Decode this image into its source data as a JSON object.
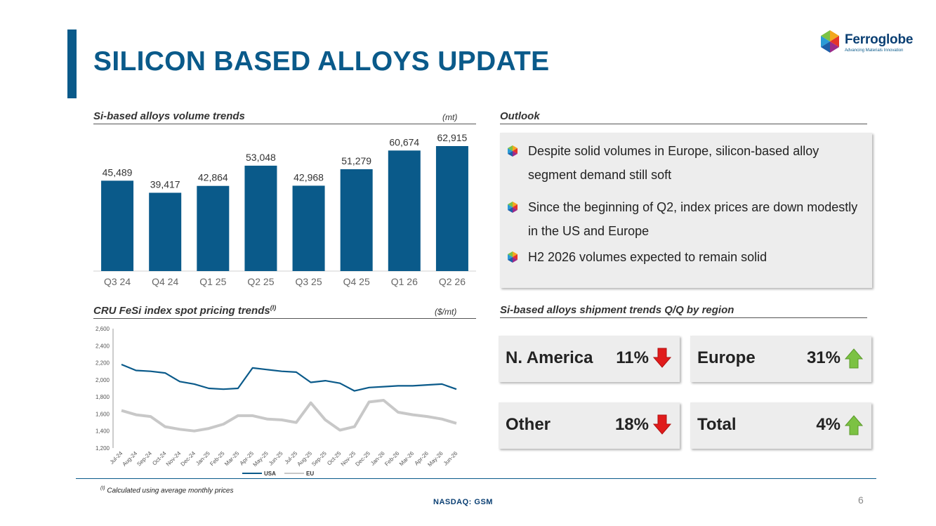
{
  "page": {
    "title": "SILICON BASED ALLOYS UPDATE",
    "logo_word": "Ferroglobe",
    "logo_tagline": "Advancing Materials Innovation",
    "footnote": "Calculated using average monthly prices",
    "footnote_mark": "(I)",
    "ticker": "NASDAQ: GSM",
    "page_number": "6"
  },
  "colors": {
    "brand_blue": "#0a5a8a",
    "bar_blue": "#0a5a8a",
    "usa_line": "#0a5a8a",
    "eu_line": "#c8c8c8",
    "arrow_down": "#e01b1b",
    "arrow_up": "#7cc243"
  },
  "volume_section": {
    "heading": "Si-based alloys volume trends",
    "unit": "(mt)"
  },
  "pricing_section": {
    "heading": "CRU FeSi index spot pricing trends",
    "heading_sup": "(I)",
    "unit": "($/mt)"
  },
  "outlook": {
    "heading": "Outlook",
    "bullets": [
      "Despite solid volumes in Europe, silicon-based alloy segment demand still soft",
      "Since the beginning of Q2, index prices are down modestly in the US and Europe",
      "H2 2026 volumes expected to remain solid"
    ]
  },
  "regions": {
    "heading": "Si-based alloys shipment trends Q/Q by region",
    "cards": [
      {
        "name": "N. America",
        "pct": "11%",
        "direction": "down",
        "icon": "arrow-down-icon"
      },
      {
        "name": "Europe",
        "pct": "31%",
        "direction": "up",
        "icon": "arrow-up-icon"
      },
      {
        "name": "Other",
        "pct": "18%",
        "direction": "down",
        "icon": "arrow-down-icon"
      },
      {
        "name": "Total",
        "pct": "4%",
        "direction": "up",
        "icon": "arrow-up-icon"
      }
    ]
  },
  "chart_data": [
    {
      "type": "bar",
      "title": "Si-based alloys volume trends",
      "unit": "(mt)",
      "categories": [
        "Q3 24",
        "Q4 24",
        "Q1 25",
        "Q2 25",
        "Q3 25",
        "Q4 25",
        "Q1 26",
        "Q2 26"
      ],
      "values": [
        45489,
        39417,
        42864,
        53048,
        42968,
        51279,
        60674,
        62915
      ],
      "value_labels": [
        "45,489",
        "39,417",
        "42,864",
        "53,048",
        "42,968",
        "51,279",
        "60,674",
        "62,915"
      ],
      "ylim": [
        0,
        62915
      ],
      "grid": false
    },
    {
      "type": "line",
      "title": "CRU FeSi index spot pricing trends",
      "unit": "($/mt)",
      "x": [
        "Jul-24",
        "Aug-24",
        "Sep-24",
        "Oct-24",
        "Nov-24",
        "Dec-24",
        "Jan-25",
        "Feb-25",
        "Mar-25",
        "Apr-25",
        "May-25",
        "Jun-25",
        "Jul-25",
        "Aug-25",
        "Sep-25",
        "Oct-25",
        "Nov-25",
        "Dec-25",
        "Jan-26",
        "Feb-26",
        "Mar-26",
        "Apr-26",
        "May-26",
        "Jun-26"
      ],
      "series": [
        {
          "name": "USA",
          "values": [
            2180,
            2110,
            2100,
            2080,
            1980,
            1950,
            1900,
            1890,
            1900,
            2140,
            2120,
            2100,
            2090,
            1970,
            1990,
            1960,
            1870,
            1910,
            1920,
            1930,
            1930,
            1940,
            1950,
            1890
          ]
        },
        {
          "name": "EU",
          "values": [
            1640,
            1590,
            1570,
            1450,
            1420,
            1400,
            1430,
            1480,
            1580,
            1580,
            1540,
            1530,
            1500,
            1730,
            1530,
            1410,
            1450,
            1740,
            1760,
            1620,
            1590,
            1570,
            1540,
            1490
          ]
        }
      ],
      "ylim": [
        1200,
        2600
      ],
      "yticks": [
        "1,200",
        "1,400",
        "1,600",
        "1,800",
        "2,000",
        "2,200",
        "2,400",
        "2,600"
      ],
      "grid": false,
      "legend": "bottom"
    }
  ]
}
